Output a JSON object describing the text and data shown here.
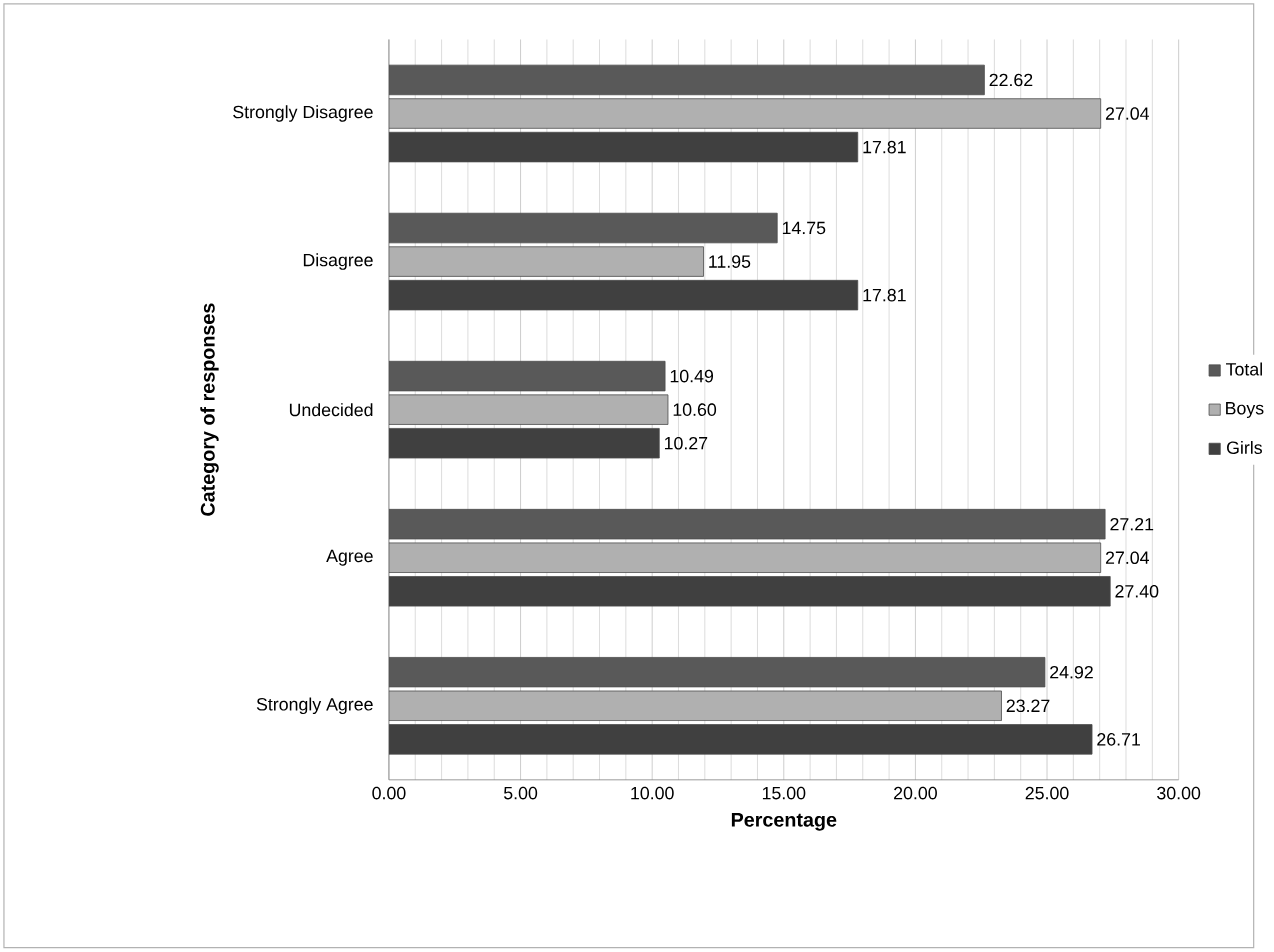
{
  "chart_data": {
    "type": "bar",
    "orientation": "horizontal",
    "xlabel": "Percentage",
    "ylabel": "Category of responses",
    "categories": [
      "Strongly Disagree",
      "Disagree",
      "Undecided",
      "Agree",
      "Strongly Agree"
    ],
    "series": [
      {
        "name": "Total",
        "color": "#595959",
        "values": [
          22.62,
          14.75,
          10.49,
          27.21,
          24.92
        ],
        "value_labels": [
          "22.62",
          "14.75",
          "10.49",
          "27.21",
          "24.92"
        ]
      },
      {
        "name": "Boys",
        "color": "#b0b0b0",
        "values": [
          27.04,
          11.95,
          10.6,
          27.04,
          23.27
        ],
        "value_labels": [
          "27.04",
          "11.95",
          "10.60",
          "27.04",
          "23.27"
        ]
      },
      {
        "name": "Girls",
        "color": "#404040",
        "values": [
          17.81,
          17.81,
          10.27,
          27.4,
          26.71
        ],
        "value_labels": [
          "17.81",
          "17.81",
          "10.27",
          "27.40",
          "26.71"
        ]
      }
    ],
    "xlim": [
      0,
      30
    ],
    "xticks": [
      {
        "value": 0,
        "label": "0.00"
      },
      {
        "value": 5,
        "label": "5.00"
      },
      {
        "value": 10,
        "label": "10.00"
      },
      {
        "value": 15,
        "label": "15.00"
      },
      {
        "value": 20,
        "label": "20.00"
      },
      {
        "value": 25,
        "label": "25.00"
      },
      {
        "value": 30,
        "label": "30.00"
      }
    ],
    "grid": "x",
    "legend": "right"
  }
}
